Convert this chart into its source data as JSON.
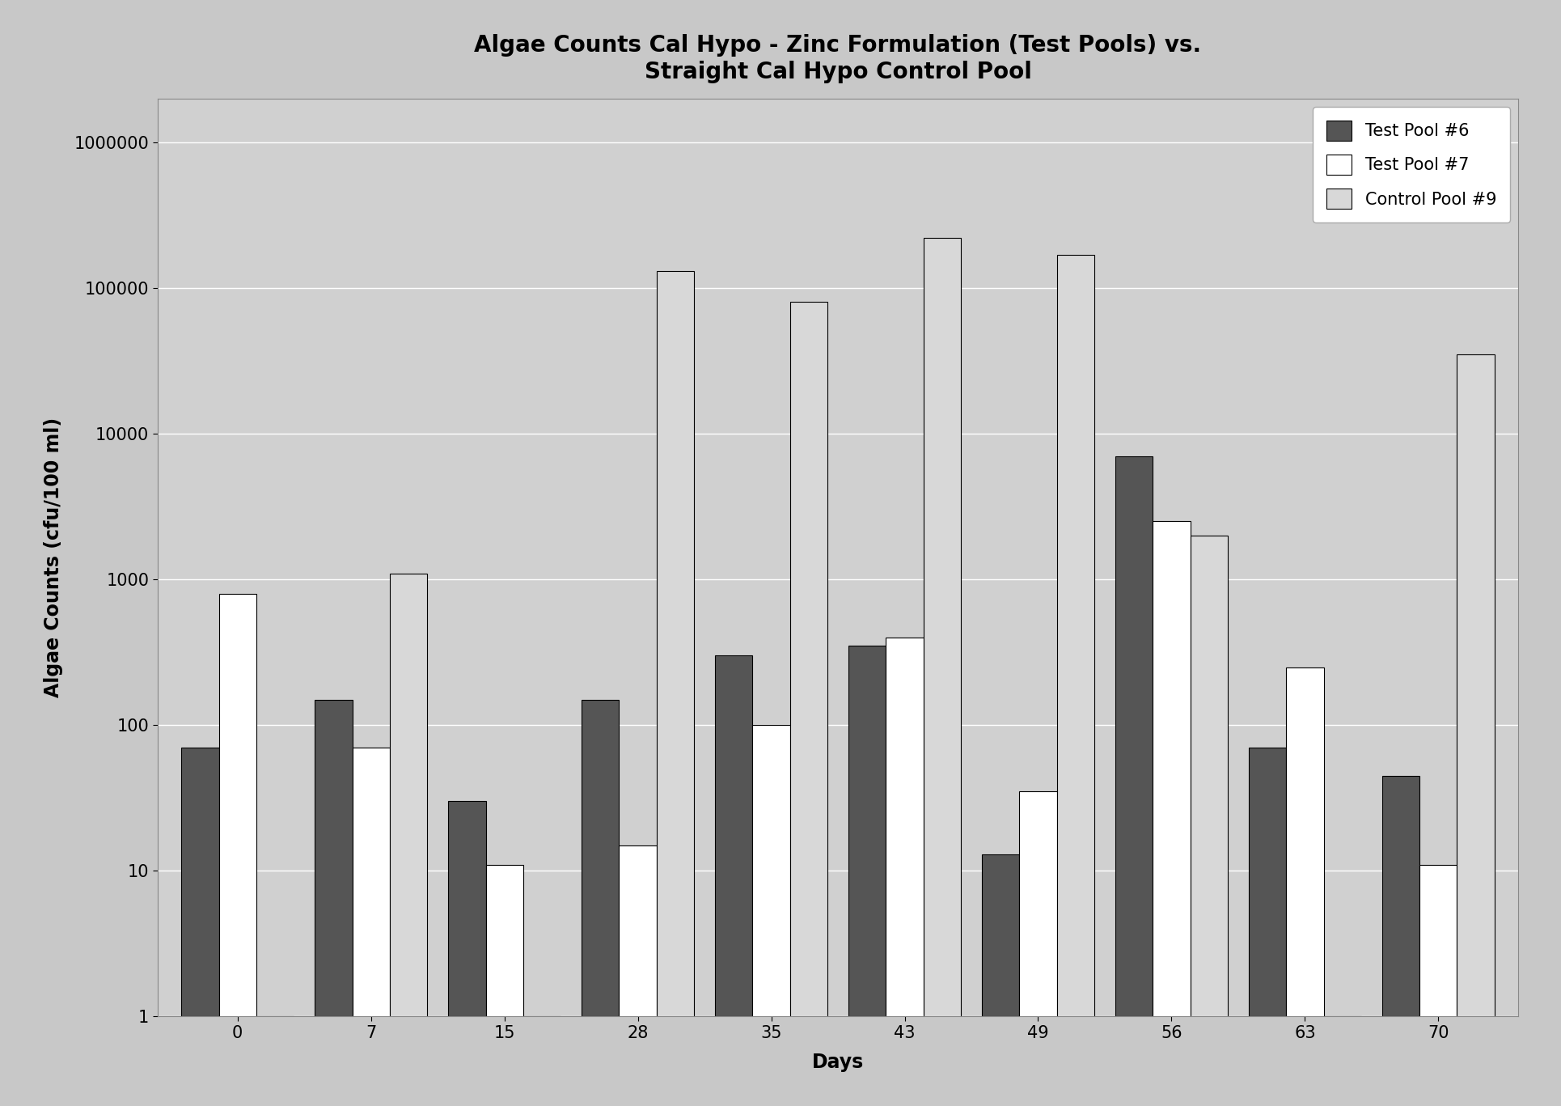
{
  "title": "Algae Counts Cal Hypo - Zinc Formulation (Test Pools) vs.\nStraight Cal Hypo Control Pool",
  "xlabel": "Days",
  "ylabel": "Algae Counts (cfu/100 ml)",
  "days": [
    0,
    7,
    15,
    28,
    35,
    43,
    49,
    56,
    63,
    70
  ],
  "pool6": [
    70,
    150,
    30,
    150,
    300,
    350,
    13,
    7000,
    70,
    45
  ],
  "pool7": [
    800,
    70,
    11,
    15,
    100,
    400,
    35,
    2500,
    250,
    11
  ],
  "pool9": [
    1,
    1100,
    1,
    130000,
    80000,
    220000,
    170000,
    2000,
    1,
    35000
  ],
  "series_labels": [
    "Test Pool #6",
    "Test Pool #7",
    "Control Pool #9"
  ],
  "color6": "#555555",
  "color7": "#ffffff",
  "color9": "#d8d8d8",
  "bar_edge6": "#000000",
  "bar_edge7": "#000000",
  "bar_edge9": "#000000",
  "ylim_min": 1,
  "ylim_max": 2000000,
  "bg_color": "#c8c8c8",
  "plot_bg_color": "#d0d0d0",
  "title_fontsize": 20,
  "axis_label_fontsize": 17,
  "tick_fontsize": 15,
  "legend_fontsize": 15,
  "bar_width": 0.28
}
